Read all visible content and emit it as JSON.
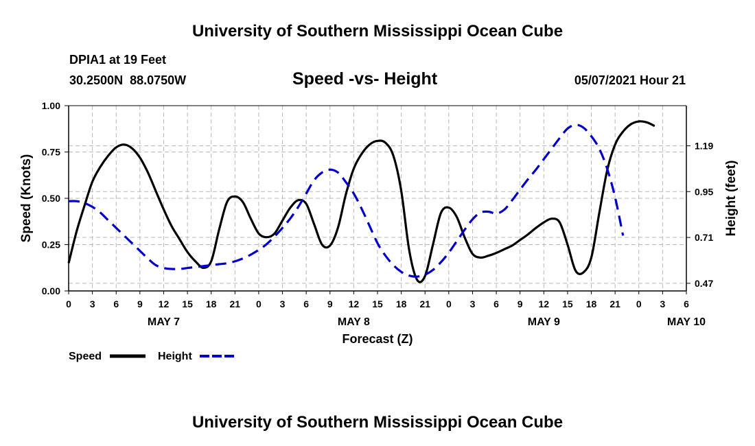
{
  "header": {
    "title_top": "University of Southern Mississippi Ocean Cube",
    "station": "DPIA1 at 19 Feet",
    "coords": "30.2500N  88.0750W",
    "chart_title": "Speed -vs- Height",
    "run": "05/07/2021 Hour 21"
  },
  "footer": {
    "title_bottom": "University of Southern Mississippi Ocean Cube"
  },
  "legend": {
    "speed_label": "Speed",
    "height_label": "Height"
  },
  "colors": {
    "speed": "#000000",
    "height": "#0000cc",
    "grid": "#b8b8b8"
  },
  "chart_data": {
    "type": "line",
    "title": "Speed -vs- Height",
    "xlabel": "Forecast (Z)",
    "ylabel_left": "Speed (Knots)",
    "ylabel_right": "Height (feet)",
    "x_range_hours": [
      0,
      78
    ],
    "y_left_range": [
      0,
      1
    ],
    "y_right_range": [
      0.43,
      1.4
    ],
    "x_tick_hours": [
      0,
      3,
      6,
      9,
      12,
      15,
      18,
      21,
      24,
      27,
      30,
      33,
      36,
      39,
      42,
      45,
      48,
      51,
      54,
      57,
      60,
      63,
      66,
      69,
      72,
      75,
      78
    ],
    "x_tick_labels": [
      "0",
      "3",
      "6",
      "9",
      "12",
      "15",
      "18",
      "21",
      "0",
      "3",
      "6",
      "9",
      "12",
      "15",
      "18",
      "21",
      "0",
      "3",
      "6",
      "9",
      "12",
      "15",
      "18",
      "21",
      "0",
      "3",
      "6"
    ],
    "day_labels": [
      {
        "label": "MAY 7",
        "hour": 12
      },
      {
        "label": "MAY 8",
        "hour": 36
      },
      {
        "label": "MAY 9",
        "hour": 60
      },
      {
        "label": "MAY 10",
        "hour": 78
      }
    ],
    "y_left_ticks": [
      "0.00",
      "0.25",
      "0.50",
      "0.75",
      "1.00"
    ],
    "y_left_tick_values": [
      0,
      0.25,
      0.5,
      0.75,
      1.0
    ],
    "y_right_ticks": [
      "0.47",
      "0.71",
      "0.95",
      "1.19"
    ],
    "y_right_tick_values": [
      0.47,
      0.71,
      0.95,
      1.19
    ],
    "series": [
      {
        "name": "Speed",
        "axis": "left",
        "points": [
          [
            0,
            0.15
          ],
          [
            1,
            0.32
          ],
          [
            2,
            0.46
          ],
          [
            3,
            0.59
          ],
          [
            4,
            0.67
          ],
          [
            5,
            0.73
          ],
          [
            6,
            0.775
          ],
          [
            7,
            0.79
          ],
          [
            8,
            0.77
          ],
          [
            9,
            0.72
          ],
          [
            10,
            0.64
          ],
          [
            11,
            0.54
          ],
          [
            12,
            0.44
          ],
          [
            13,
            0.35
          ],
          [
            14,
            0.28
          ],
          [
            15,
            0.21
          ],
          [
            16,
            0.16
          ],
          [
            17,
            0.125
          ],
          [
            18,
            0.16
          ],
          [
            19,
            0.33
          ],
          [
            20,
            0.48
          ],
          [
            21,
            0.51
          ],
          [
            22,
            0.48
          ],
          [
            23,
            0.39
          ],
          [
            24,
            0.31
          ],
          [
            25,
            0.29
          ],
          [
            26,
            0.31
          ],
          [
            27,
            0.38
          ],
          [
            28,
            0.45
          ],
          [
            29,
            0.49
          ],
          [
            30,
            0.47
          ],
          [
            31,
            0.36
          ],
          [
            32,
            0.25
          ],
          [
            33,
            0.245
          ],
          [
            34,
            0.34
          ],
          [
            35,
            0.52
          ],
          [
            36,
            0.66
          ],
          [
            37,
            0.74
          ],
          [
            38,
            0.79
          ],
          [
            39,
            0.81
          ],
          [
            40,
            0.8
          ],
          [
            41,
            0.73
          ],
          [
            42,
            0.54
          ],
          [
            43,
            0.22
          ],
          [
            44,
            0.06
          ],
          [
            45,
            0.08
          ],
          [
            46,
            0.25
          ],
          [
            47,
            0.42
          ],
          [
            48,
            0.45
          ],
          [
            49,
            0.4
          ],
          [
            50,
            0.29
          ],
          [
            51,
            0.2
          ],
          [
            52,
            0.18
          ],
          [
            53,
            0.19
          ],
          [
            54,
            0.205
          ],
          [
            55,
            0.225
          ],
          [
            56,
            0.245
          ],
          [
            57,
            0.275
          ],
          [
            58,
            0.305
          ],
          [
            59,
            0.34
          ],
          [
            60,
            0.37
          ],
          [
            61,
            0.39
          ],
          [
            62,
            0.37
          ],
          [
            63,
            0.25
          ],
          [
            64,
            0.11
          ],
          [
            65,
            0.1
          ],
          [
            66,
            0.18
          ],
          [
            67,
            0.42
          ],
          [
            68,
            0.65
          ],
          [
            69,
            0.79
          ],
          [
            70,
            0.86
          ],
          [
            71,
            0.9
          ],
          [
            72,
            0.915
          ],
          [
            73,
            0.91
          ],
          [
            74,
            0.89
          ]
        ]
      },
      {
        "name": "Height",
        "axis": "right",
        "points": [
          [
            0,
            0.9
          ],
          [
            1,
            0.9
          ],
          [
            2,
            0.89
          ],
          [
            3,
            0.87
          ],
          [
            4,
            0.84
          ],
          [
            5,
            0.8
          ],
          [
            6,
            0.76
          ],
          [
            7,
            0.72
          ],
          [
            8,
            0.68
          ],
          [
            9,
            0.64
          ],
          [
            10,
            0.6
          ],
          [
            11,
            0.565
          ],
          [
            12,
            0.55
          ],
          [
            13,
            0.545
          ],
          [
            14,
            0.545
          ],
          [
            15,
            0.55
          ],
          [
            16,
            0.555
          ],
          [
            17,
            0.56
          ],
          [
            18,
            0.565
          ],
          [
            19,
            0.57
          ],
          [
            20,
            0.575
          ],
          [
            21,
            0.585
          ],
          [
            22,
            0.6
          ],
          [
            23,
            0.62
          ],
          [
            24,
            0.645
          ],
          [
            25,
            0.675
          ],
          [
            26,
            0.715
          ],
          [
            27,
            0.76
          ],
          [
            28,
            0.81
          ],
          [
            29,
            0.87
          ],
          [
            30,
            0.94
          ],
          [
            31,
            1.01
          ],
          [
            32,
            1.05
          ],
          [
            33,
            1.065
          ],
          [
            34,
            1.05
          ],
          [
            35,
            1.0
          ],
          [
            36,
            0.94
          ],
          [
            37,
            0.86
          ],
          [
            38,
            0.77
          ],
          [
            39,
            0.68
          ],
          [
            40,
            0.615
          ],
          [
            41,
            0.565
          ],
          [
            42,
            0.53
          ],
          [
            43,
            0.51
          ],
          [
            44,
            0.505
          ],
          [
            45,
            0.515
          ],
          [
            46,
            0.54
          ],
          [
            47,
            0.58
          ],
          [
            48,
            0.63
          ],
          [
            49,
            0.69
          ],
          [
            50,
            0.75
          ],
          [
            51,
            0.805
          ],
          [
            52,
            0.84
          ],
          [
            53,
            0.845
          ],
          [
            54,
            0.835
          ],
          [
            55,
            0.855
          ],
          [
            56,
            0.905
          ],
          [
            57,
            0.96
          ],
          [
            58,
            1.015
          ],
          [
            59,
            1.065
          ],
          [
            60,
            1.12
          ],
          [
            61,
            1.175
          ],
          [
            62,
            1.23
          ],
          [
            63,
            1.28
          ],
          [
            64,
            1.3
          ],
          [
            65,
            1.285
          ],
          [
            66,
            1.24
          ],
          [
            67,
            1.175
          ],
          [
            68,
            1.07
          ],
          [
            69,
            0.92
          ],
          [
            70,
            0.72
          ]
        ]
      }
    ]
  }
}
